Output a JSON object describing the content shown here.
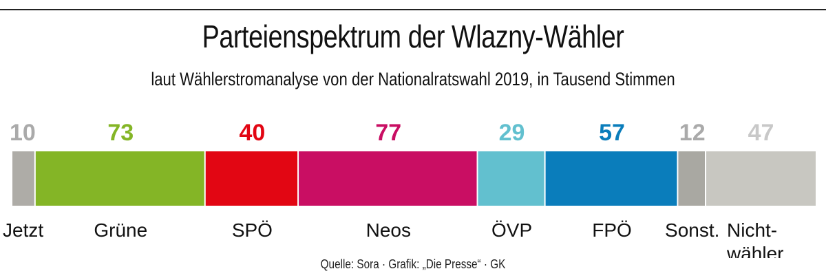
{
  "chart_data": {
    "type": "bar",
    "orientation": "horizontal-stacked",
    "title": "Parteienspektrum der Wlazny-Wähler",
    "subtitle": "laut Wählerstromanalyse von der Nationalratswahl 2019, in Tausend Stimmen",
    "categories": [
      "Jetzt",
      "Grüne",
      "SPÖ",
      "Neos",
      "ÖVP",
      "FPÖ",
      "Sonst.",
      "Nicht-\nwähler"
    ],
    "values": [
      10,
      73,
      40,
      77,
      29,
      57,
      12,
      47
    ],
    "value_labels": [
      "10",
      "73",
      "40",
      "77",
      "29",
      "57",
      "12",
      "47"
    ],
    "colors": [
      "#aeaca7",
      "#84b526",
      "#e20613",
      "#c90e63",
      "#62c0cf",
      "#0a7dbb",
      "#a9a8a2",
      "#c8c7c1"
    ],
    "label_colors": [
      "#aaaaaa",
      "#84b526",
      "#e20613",
      "#c90e63",
      "#62c0cf",
      "#0a7dbb",
      "#aaaaaa",
      "#c8c8c8"
    ],
    "units": "Tausend Stimmen",
    "source": "Quelle: Sora · Grafik: „Die Presse“ · GK"
  }
}
